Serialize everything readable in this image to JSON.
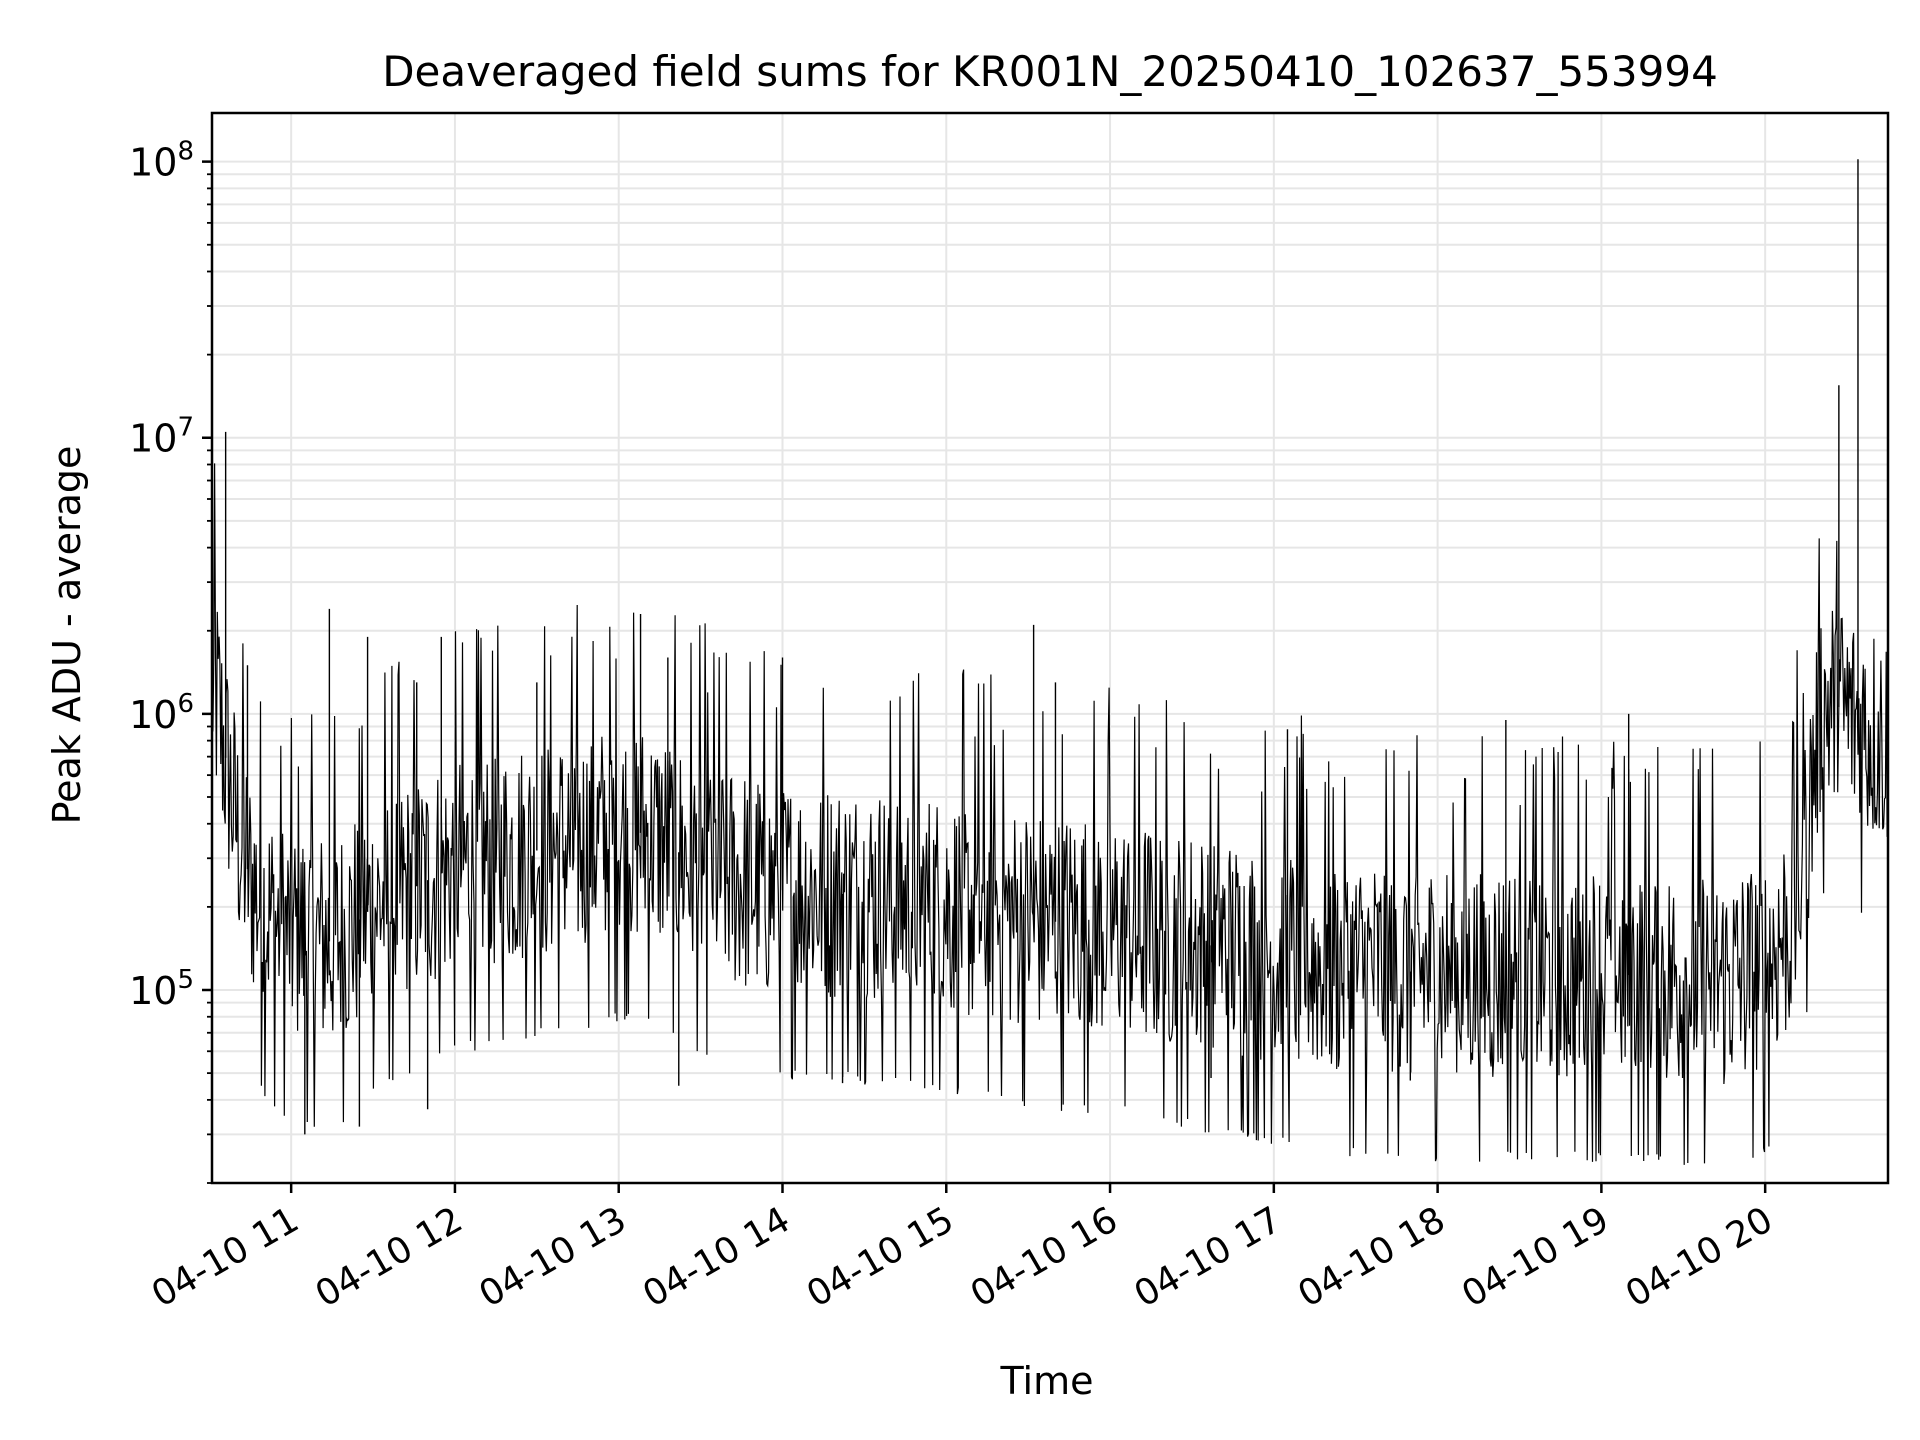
{
  "chart_data": {
    "type": "line",
    "title": "Deaveraged field sums for KR001N_20250410_102637_553994",
    "xlabel": "Time",
    "ylabel": "Peak ADU - average",
    "yscale": "log",
    "ylim": [
      20000,
      150000000
    ],
    "xlim": [
      "2025-04-10 10:31",
      "2025-04-10 20:45"
    ],
    "y_ticks": [
      {
        "value": 100000,
        "base": "10",
        "exp": "5"
      },
      {
        "value": 1000000,
        "base": "10",
        "exp": "6"
      },
      {
        "value": 10000000,
        "base": "10",
        "exp": "7"
      },
      {
        "value": 100000000,
        "base": "10",
        "exp": "8"
      }
    ],
    "x_ticks": [
      {
        "time": "2025-04-10 11:00",
        "label": "04-10 11"
      },
      {
        "time": "2025-04-10 12:00",
        "label": "04-10 12"
      },
      {
        "time": "2025-04-10 13:00",
        "label": "04-10 13"
      },
      {
        "time": "2025-04-10 14:00",
        "label": "04-10 14"
      },
      {
        "time": "2025-04-10 15:00",
        "label": "04-10 15"
      },
      {
        "time": "2025-04-10 16:00",
        "label": "04-10 16"
      },
      {
        "time": "2025-04-10 17:00",
        "label": "04-10 17"
      },
      {
        "time": "2025-04-10 18:00",
        "label": "04-10 18"
      },
      {
        "time": "2025-04-10 19:00",
        "label": "04-10 19"
      },
      {
        "time": "2025-04-10 20:00",
        "label": "04-10 20"
      }
    ],
    "grid": true,
    "minor_grid_y": true,
    "line_color": "#000000",
    "grid_color": "#e6e6e6",
    "series": [
      {
        "x": [
          "2025-04-10 10:31",
          "2025-04-10 10:33",
          "2025-04-10 10:35",
          "2025-04-10 10:37",
          "2025-04-10 10:39",
          "2025-04-10 10:41",
          "2025-04-10 10:43",
          "2025-04-10 10:45",
          "2025-04-10 10:50",
          "2025-04-10 10:55",
          "2025-04-10 11:00",
          "2025-04-10 11:05",
          "2025-04-10 11:10",
          "2025-04-10 11:15",
          "2025-04-10 11:20",
          "2025-04-10 11:25",
          "2025-04-10 11:30",
          "2025-04-10 11:40",
          "2025-04-10 11:50",
          "2025-04-10 12:00",
          "2025-04-10 12:15",
          "2025-04-10 12:30",
          "2025-04-10 12:45",
          "2025-04-10 12:55",
          "2025-04-10 13:05",
          "2025-04-10 13:15",
          "2025-04-10 13:30",
          "2025-04-10 13:45",
          "2025-04-10 14:00",
          "2025-04-10 14:30",
          "2025-04-10 15:00",
          "2025-04-10 15:30",
          "2025-04-10 16:00",
          "2025-04-10 16:30",
          "2025-04-10 17:00",
          "2025-04-10 17:30",
          "2025-04-10 18:00",
          "2025-04-10 18:30",
          "2025-04-10 19:00",
          "2025-04-10 19:30",
          "2025-04-10 19:50",
          "2025-04-10 20:00",
          "2025-04-10 20:10",
          "2025-04-10 20:15",
          "2025-04-10 20:20",
          "2025-04-10 20:25",
          "2025-04-10 20:30",
          "2025-04-10 20:35",
          "2025-04-10 20:40",
          "2025-04-10 20:45"
        ],
        "y": [
          1300000,
          1100000,
          800000,
          600000,
          450000,
          350000,
          300000,
          250000,
          200000,
          170000,
          160000,
          160000,
          150000,
          150000,
          160000,
          180000,
          200000,
          220000,
          250000,
          280000,
          300000,
          320000,
          340000,
          360000,
          380000,
          350000,
          280000,
          250000,
          230000,
          220000,
          200000,
          180000,
          170000,
          150000,
          130000,
          120000,
          115000,
          115000,
          115000,
          110000,
          110000,
          120000,
          180000,
          350000,
          1000000,
          1100000,
          1000000,
          900000,
          850000,
          800000
        ]
      }
    ],
    "spikes": [
      {
        "x": "2025-04-10 10:31",
        "y": 2700000
      },
      {
        "x": "2025-04-10 10:36",
        "y": 10500000
      },
      {
        "x": "2025-04-10 10:44",
        "y": 1500000
      },
      {
        "x": "2025-04-10 11:14",
        "y": 2400000
      },
      {
        "x": "2025-04-10 11:28",
        "y": 1900000
      },
      {
        "x": "2025-04-10 11:46",
        "y": 1300000
      },
      {
        "x": "2025-04-10 11:55",
        "y": 1900000
      },
      {
        "x": "2025-04-10 12:30",
        "y": 1300000
      },
      {
        "x": "2025-04-10 13:08",
        "y": 2300000
      },
      {
        "x": "2025-04-10 13:18",
        "y": 1600000
      },
      {
        "x": "2025-04-10 14:00",
        "y": 1600000
      },
      {
        "x": "2025-04-10 15:32",
        "y": 2100000
      },
      {
        "x": "2025-04-10 15:40",
        "y": 1300000
      },
      {
        "x": "2025-04-10 17:05",
        "y": 880000
      },
      {
        "x": "2025-04-10 18:25",
        "y": 950000
      },
      {
        "x": "2025-04-10 19:10",
        "y": 1000000
      },
      {
        "x": "2025-04-10 20:27",
        "y": 15500000
      },
      {
        "x": "2025-04-10 20:34",
        "y": 102000000
      },
      {
        "x": "2025-04-10 11:05",
        "y": 30000
      },
      {
        "x": "2025-04-10 11:25",
        "y": 32000
      },
      {
        "x": "2025-04-10 11:50",
        "y": 37000
      },
      {
        "x": "2025-04-10 13:22",
        "y": 45000
      },
      {
        "x": "2025-04-10 14:22",
        "y": 46000
      },
      {
        "x": "2025-04-10 16:37",
        "y": 48000
      },
      {
        "x": "2025-04-10 17:50",
        "y": 47000
      }
    ]
  }
}
